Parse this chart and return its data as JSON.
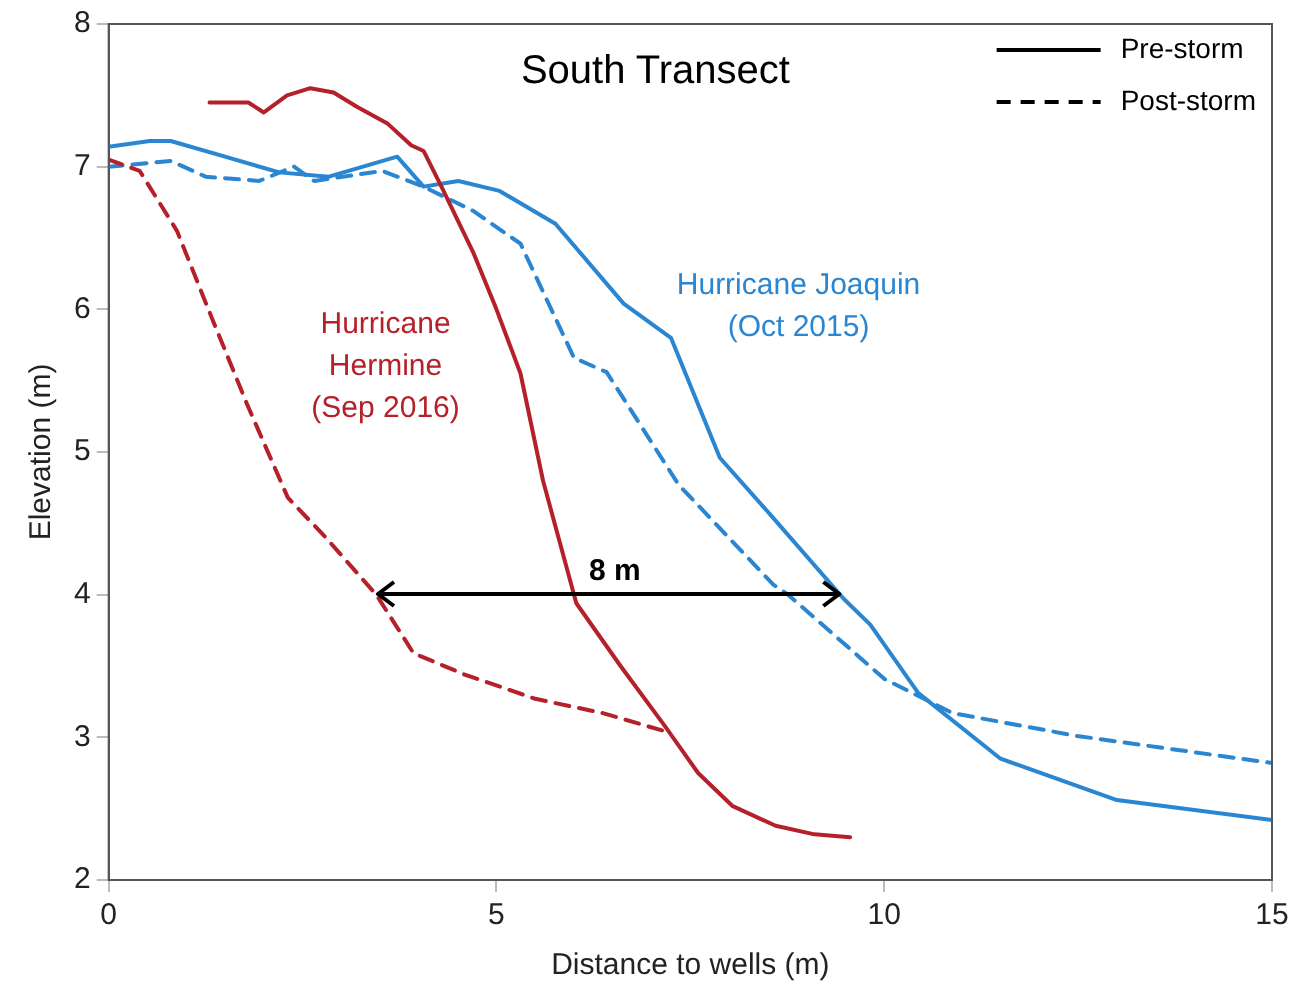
{
  "chart_data": {
    "type": "line",
    "title": "South Transect",
    "xlabel": "Distance to wells (m)",
    "ylabel": "Elevation (m)",
    "xlim": [
      0,
      15
    ],
    "xticks": [
      0,
      5,
      10,
      15
    ],
    "ylim": [
      2,
      8
    ],
    "yticks": [
      2,
      3,
      4,
      5,
      6,
      7,
      8
    ],
    "grid": false,
    "legend": "top right",
    "marker": "none",
    "series": [
      {
        "color": "#b5212b",
        "line_style": "solid",
        "x": [
          1.3,
          1.8,
          2.0,
          2.3,
          2.6,
          2.9,
          3.2,
          3.6,
          3.9,
          4.06,
          4.3,
          4.7,
          5.0,
          5.31,
          5.6,
          6.03,
          6.6,
          7.17,
          7.6,
          8.04,
          8.6,
          9.1,
          9.56
        ],
        "values": [
          7.45,
          7.45,
          7.38,
          7.5,
          7.55,
          7.52,
          7.42,
          7.3,
          7.15,
          7.11,
          6.85,
          6.4,
          6.0,
          5.55,
          4.8,
          3.94,
          3.5,
          3.08,
          2.75,
          2.52,
          2.38,
          2.32,
          2.3
        ]
      },
      {
        "color": "#b5212b",
        "line_style": "dashed",
        "x": [
          0,
          0.4,
          0.88,
          1.33,
          1.78,
          2.31,
          2.8,
          3.45,
          3.93,
          4.59,
          5.5,
          6.37,
          7.25
        ],
        "values": [
          7.05,
          6.97,
          6.55,
          5.94,
          5.34,
          4.68,
          4.4,
          4.0,
          3.59,
          3.44,
          3.27,
          3.17,
          3.03
        ]
      },
      {
        "color": "#2a86d1",
        "line_style": "solid",
        "x": [
          0,
          0.53,
          0.8,
          1.5,
          2.2,
          2.84,
          3.72,
          4.06,
          4.51,
          5.04,
          5.76,
          6.64,
          7.25,
          7.88,
          8.5,
          9.48,
          9.82,
          10.44,
          11.5,
          13.0,
          15
        ],
        "values": [
          7.14,
          7.18,
          7.18,
          7.07,
          6.96,
          6.93,
          7.07,
          6.86,
          6.9,
          6.83,
          6.6,
          6.04,
          5.8,
          4.96,
          4.58,
          3.97,
          3.79,
          3.31,
          2.85,
          2.56,
          2.42
        ]
      },
      {
        "color": "#2a86d1",
        "line_style": "dashed",
        "x": [
          0,
          0.8,
          1.25,
          1.94,
          2.39,
          2.65,
          3.53,
          4.06,
          4.7,
          5.31,
          6.0,
          6.42,
          7.35,
          8.57,
          8.76,
          10.0,
          10.88,
          12.48,
          15
        ],
        "values": [
          7.0,
          7.04,
          6.93,
          6.9,
          7.0,
          6.9,
          6.97,
          6.86,
          6.69,
          6.46,
          5.66,
          5.56,
          4.77,
          4.07,
          4.0,
          3.41,
          3.17,
          3.01,
          2.82
        ]
      },
      {
        "name": "Pre-storm",
        "color": "#000000",
        "line_style": "solid"
      },
      {
        "name": "Post-storm",
        "color": "#000000",
        "line_style": "dashed"
      }
    ],
    "annotations": [
      "Hurricane\nHermine\n(Sep 2016)",
      "Hurricane Joaquin\n(Oct 2015)",
      "8 m"
    ]
  }
}
